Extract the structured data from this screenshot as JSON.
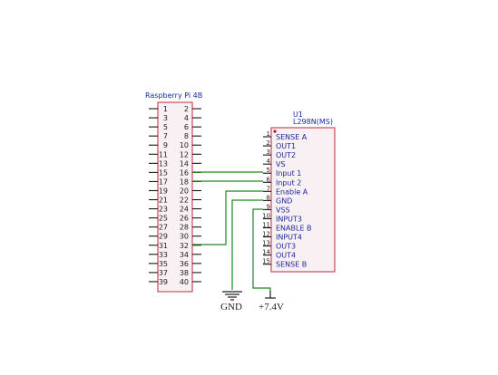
{
  "colors": {
    "body_fill": "#f8f0f3",
    "body_stroke": "#c84b5c",
    "pin_line": "#000000",
    "wire": "#1a8a1a",
    "label_blue": "#1a2aa0",
    "power_black": "#1e1e1e",
    "pin1_dot": "#c01010"
  },
  "rpi": {
    "title": "Raspberry Pi 4B",
    "left_pins": [
      "1",
      "3",
      "5",
      "7",
      "9",
      "11",
      "13",
      "15",
      "17",
      "19",
      "21",
      "23",
      "25",
      "27",
      "29",
      "31",
      "33",
      "35",
      "37",
      "39"
    ],
    "right_pins": [
      "2",
      "4",
      "6",
      "8",
      "10",
      "12",
      "14",
      "16",
      "18",
      "20",
      "22",
      "24",
      "26",
      "28",
      "30",
      "32",
      "34",
      "36",
      "38",
      "40"
    ]
  },
  "driver": {
    "ref": "U1",
    "part": "L298N(MS)",
    "pins": [
      {
        "num": "1",
        "name": "SENSE A"
      },
      {
        "num": "2",
        "name": "OUT1"
      },
      {
        "num": "3",
        "name": "OUT2"
      },
      {
        "num": "4",
        "name": "VS"
      },
      {
        "num": "5",
        "name": "Input 1"
      },
      {
        "num": "6",
        "name": "Input 2"
      },
      {
        "num": "7",
        "name": "Enable A"
      },
      {
        "num": "8",
        "name": "GND"
      },
      {
        "num": "9",
        "name": "VSS"
      },
      {
        "num": "10",
        "name": "INPUT3"
      },
      {
        "num": "11",
        "name": "ENABLE B"
      },
      {
        "num": "12",
        "name": "INPUT4"
      },
      {
        "num": "13",
        "name": "OUT3"
      },
      {
        "num": "14",
        "name": "OUT4"
      },
      {
        "num": "15",
        "name": "SENSE B"
      }
    ]
  },
  "power": {
    "gnd_label": "GND",
    "vcc_label": "+7.4V"
  },
  "connections": [
    {
      "from_pin": "16",
      "to_pin": "Input 1"
    },
    {
      "from_pin": "18",
      "to_pin": "Input 2"
    },
    {
      "from_pin": "32",
      "to_pin": "Enable A"
    },
    {
      "from_pin": "GND",
      "to_pin": "GND"
    },
    {
      "from_pin": "+7.4V",
      "to_pin": "VSS"
    }
  ]
}
